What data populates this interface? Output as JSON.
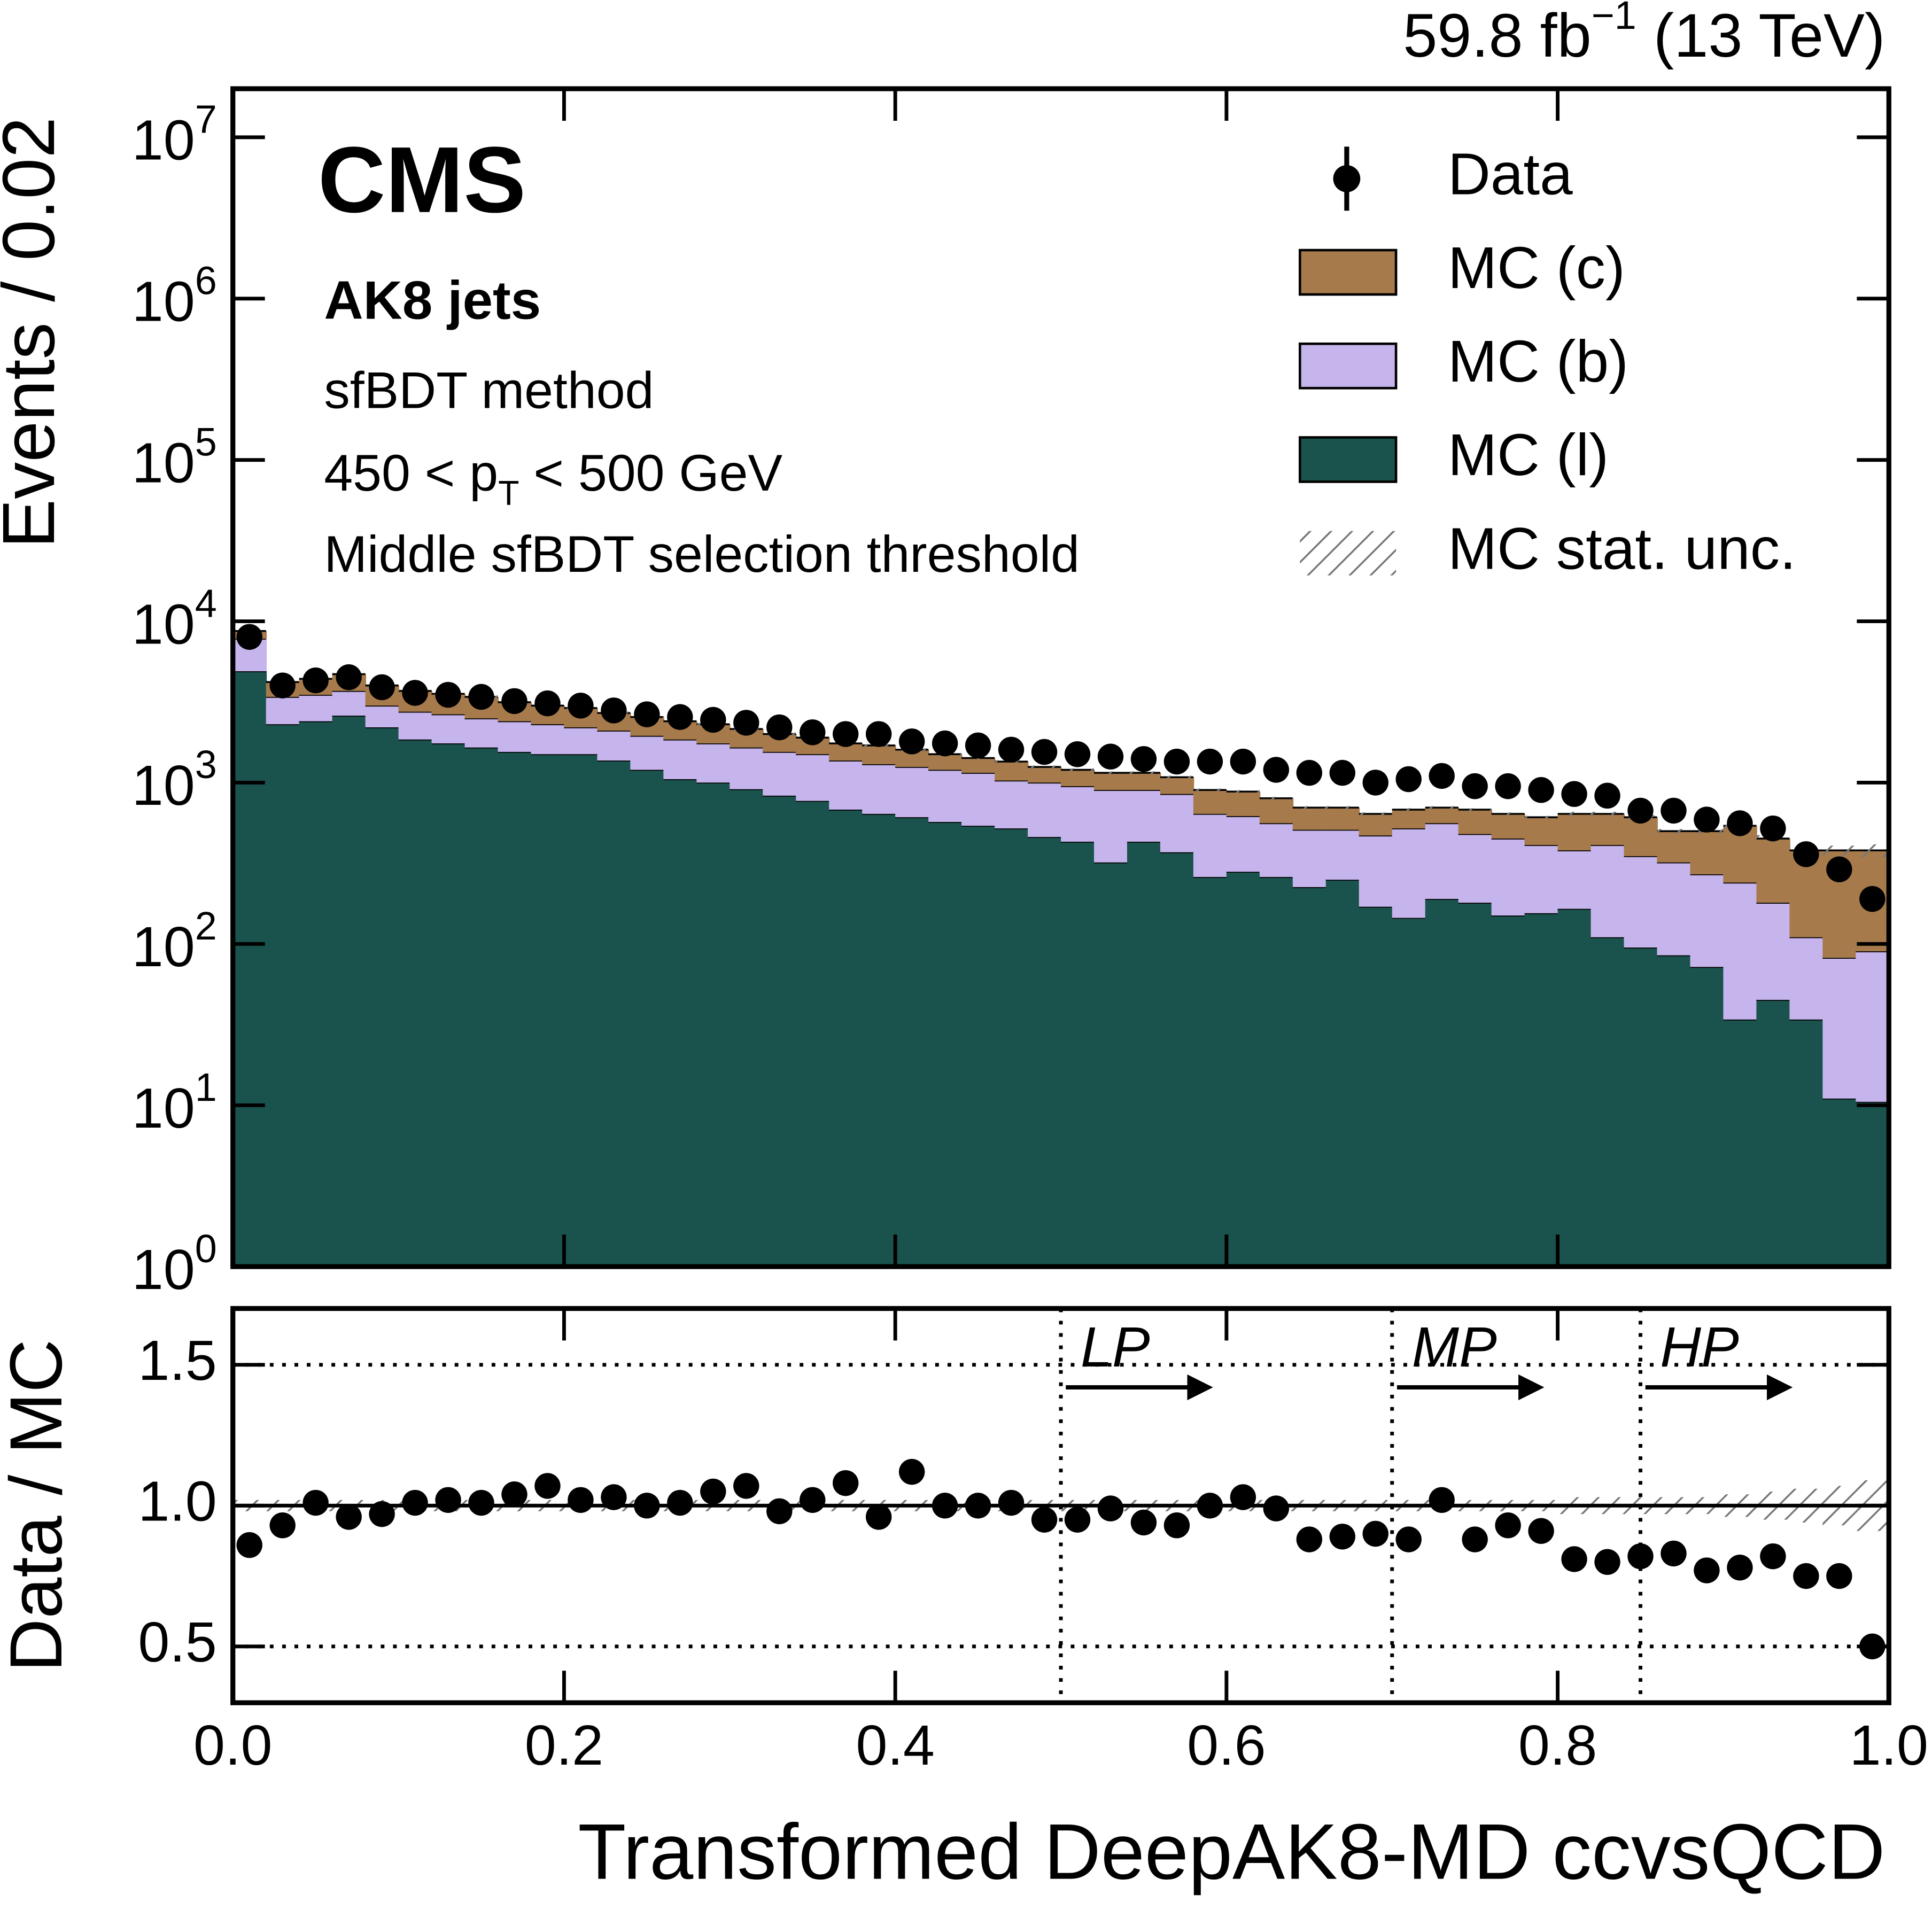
{
  "chart_data": {
    "type": "stacked_histogram",
    "lumi": [
      "59.8 fb",
      "−1",
      " (13 TeV)"
    ],
    "cms_label": "CMS",
    "jet_label": "AK8 jets",
    "method": "sfBDT method",
    "pt_range": [
      "450 < p",
      "T",
      " < 500 GeV"
    ],
    "threshold": "Middle sfBDT selection threshold",
    "ylabel": "Events / 0.02",
    "xlabel": "Transformed DeepAK8-MD ccvsQCD",
    "bins": [
      0,
      0.02,
      0.04,
      0.06,
      0.08,
      0.1,
      0.12,
      0.14,
      0.16,
      0.18,
      0.2,
      0.22,
      0.24,
      0.26,
      0.28,
      0.3,
      0.32,
      0.34,
      0.36,
      0.38,
      0.4,
      0.42,
      0.44,
      0.46,
      0.48,
      0.5,
      0.52,
      0.54,
      0.56,
      0.58,
      0.6,
      0.62,
      0.64,
      0.66,
      0.68,
      0.7,
      0.72,
      0.74,
      0.76,
      0.78,
      0.8,
      0.82,
      0.84,
      0.86,
      0.88,
      0.9,
      0.92,
      0.94,
      0.96,
      0.98,
      1
    ],
    "xlim": [
      0,
      1
    ],
    "xticks": [
      {
        "value": 0,
        "label": "0.0"
      },
      0.2,
      0.4,
      0.6,
      0.8,
      {
        "value": 1,
        "label": "1.0"
      }
    ],
    "ylim": [
      1,
      20000000
    ],
    "log_y": true,
    "yticks": [
      {
        "value": 1,
        "label": "10",
        "exponent": "0"
      },
      {
        "value": 10,
        "label": "10",
        "exponent": "1"
      },
      {
        "value": 100,
        "label": "10",
        "exponent": "2"
      },
      {
        "value": 1000,
        "label": "10",
        "exponent": "3"
      },
      {
        "value": 10000,
        "label": "10",
        "exponent": "4"
      },
      {
        "value": 100000,
        "label": "10",
        "exponent": "5"
      },
      {
        "value": 1000000,
        "label": "10",
        "exponent": "6"
      },
      {
        "value": 10000000,
        "label": "10",
        "exponent": "7"
      }
    ],
    "series": [
      {
        "name": "MC (l)",
        "color": "#1a534d",
        "values": [
          4900,
          2300,
          2400,
          2600,
          2200,
          1850,
          1750,
          1650,
          1550,
          1500,
          1500,
          1370,
          1200,
          1050,
          1000,
          910,
          830,
          770,
          680,
          640,
          610,
          570,
          540,
          520,
          460,
          430,
          320,
          430,
          370,
          260,
          280,
          260,
          225,
          250,
          170,
          145,
          190,
          180,
          150,
          155,
          165,
          110,
          95,
          85,
          72,
          34,
          45,
          34,
          11,
          10.5
        ]
      },
      {
        "name": "MC (b)",
        "color": "#c6b4ec",
        "values": [
          2900,
          1100,
          1100,
          1100,
          800,
          900,
          900,
          850,
          850,
          800,
          700,
          730,
          750,
          800,
          750,
          740,
          720,
          730,
          690,
          660,
          640,
          630,
          610,
          510,
          540,
          520,
          580,
          470,
          480,
          380,
          340,
          300,
          285,
          260,
          300,
          375,
          370,
          300,
          300,
          255,
          215,
          300,
          255,
          235,
          198,
          206,
          135,
          76,
          71,
          79.5
        ]
      },
      {
        "name": "MC (c)",
        "color": "#a67a4b",
        "values": [
          900,
          800,
          900,
          1000,
          1000,
          950,
          900,
          900,
          750,
          700,
          700,
          600,
          600,
          550,
          550,
          500,
          450,
          400,
          380,
          400,
          350,
          300,
          270,
          320,
          250,
          250,
          250,
          250,
          230,
          260,
          260,
          240,
          190,
          190,
          170,
          160,
          140,
          200,
          190,
          200,
          260,
          230,
          260,
          180,
          230,
          300,
          270,
          270,
          298,
          290
        ]
      }
    ],
    "data": {
      "name": "Data",
      "color": "#000000",
      "values": [
        8000,
        4000,
        4300,
        4500,
        3900,
        3600,
        3500,
        3400,
        3200,
        3100,
        3000,
        2800,
        2650,
        2550,
        2450,
        2350,
        2200,
        2050,
        2000,
        2000,
        1800,
        1750,
        1700,
        1600,
        1550,
        1500,
        1450,
        1400,
        1350,
        1350,
        1350,
        1200,
        1150,
        1150,
        1000,
        1050,
        1100,
        950,
        950,
        900,
        850,
        830,
        670,
        670,
        590,
        560,
        520,
        360,
        290,
        190
      ]
    },
    "stat_unc": {
      "name": "MC stat. unc.",
      "color": "#777777",
      "values": [
        0.02,
        0.02,
        0.02,
        0.02,
        0.02,
        0.02,
        0.02,
        0.02,
        0.02,
        0.02,
        0.02,
        0.02,
        0.02,
        0.02,
        0.02,
        0.02,
        0.02,
        0.02,
        0.02,
        0.02,
        0.02,
        0.02,
        0.02,
        0.02,
        0.02,
        0.02,
        0.02,
        0.02,
        0.02,
        0.02,
        0.02,
        0.02,
        0.02,
        0.02,
        0.02,
        0.02,
        0.02,
        0.02,
        0.02,
        0.02,
        0.03,
        0.03,
        0.03,
        0.03,
        0.03,
        0.04,
        0.05,
        0.06,
        0.07,
        0.09
      ]
    },
    "legend": "upper right",
    "ratio": {
      "ylabel": "Data / MC",
      "values": [
        0.86,
        0.93,
        1.01,
        0.96,
        0.97,
        1.01,
        1.02,
        1.01,
        1.04,
        1.07,
        1.02,
        1.03,
        1.0,
        1.01,
        1.05,
        1.07,
        0.98,
        1.02,
        1.08,
        0.96,
        1.12,
        1.0,
        1.0,
        1.01,
        0.95,
        0.95,
        0.99,
        0.94,
        0.93,
        1.0,
        1.03,
        0.99,
        0.88,
        0.89,
        0.9,
        0.88,
        1.02,
        0.88,
        0.93,
        0.91,
        0.81,
        0.8,
        0.82,
        0.83,
        0.77,
        0.78,
        0.82,
        0.75,
        0.75,
        0.5
      ],
      "ylim": [
        0.3,
        1.7
      ],
      "yticks": [
        0.5,
        {
          "value": 1,
          "label": "1.0"
        },
        1.5
      ],
      "grid": "dotted",
      "ref_line": 1
    },
    "annotations": [
      {
        "x": 0.5,
        "label": "LP"
      },
      {
        "x": 0.7,
        "label": "MP"
      },
      {
        "x": 0.85,
        "label": "HP"
      }
    ]
  }
}
